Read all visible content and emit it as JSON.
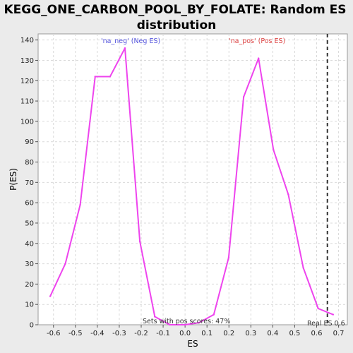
{
  "chart_data": {
    "type": "line",
    "title_lines": [
      "KEGG_ONE_CARBON_POOL_BY_FOLATE: Random ES",
      "distribution"
    ],
    "xlabel": "ES",
    "ylabel": "P(ES)",
    "xlim": [
      -0.67,
      0.74
    ],
    "ylim": [
      0,
      143
    ],
    "xticks": [
      -0.6,
      -0.5,
      -0.4,
      -0.3,
      -0.2,
      -0.1,
      0.0,
      0.1,
      0.2,
      0.3,
      0.4,
      0.5,
      0.6,
      0.7
    ],
    "xtick_labels": [
      "-0.6",
      "-0.5",
      "-0.4",
      "-0.3",
      "-0.2",
      "-0.1",
      "0.0",
      "0.1",
      "0.2",
      "0.3",
      "0.4",
      "0.5",
      "0.6",
      "0.7"
    ],
    "yticks": [
      0,
      10,
      20,
      30,
      40,
      50,
      60,
      70,
      80,
      90,
      100,
      110,
      120,
      130,
      140
    ],
    "ytick_labels": [
      "0",
      "10",
      "20",
      "30",
      "40",
      "50",
      "60",
      "70",
      "80",
      "90",
      "100",
      "110",
      "120",
      "130",
      "140"
    ],
    "grid": true,
    "series": [
      {
        "color": "#ee44ee",
        "x": [
          -0.615,
          -0.546,
          -0.478,
          -0.41,
          -0.342,
          -0.274,
          -0.206,
          -0.138,
          -0.07,
          0.0,
          0.063,
          0.131,
          0.199,
          0.267,
          0.335,
          0.403,
          0.471,
          0.539,
          0.607,
          0.675
        ],
        "y": [
          14,
          30,
          59,
          122,
          122,
          136,
          41,
          4,
          0,
          0,
          1,
          5,
          33,
          112,
          131,
          86,
          64,
          28,
          8,
          5
        ]
      }
    ],
    "vline": {
      "x": 0.649,
      "color": "#333333",
      "style": "dashed"
    },
    "annotations": {
      "neg": {
        "text": "'na_neg' (Neg ES)",
        "color": "#5555dd"
      },
      "pos": {
        "text": "'na_pos' (Pos ES)",
        "color": "#dd4444"
      },
      "sets_with_pos": "Sets with pos scores: 47%",
      "real_es": "Real ES 0.6"
    }
  }
}
